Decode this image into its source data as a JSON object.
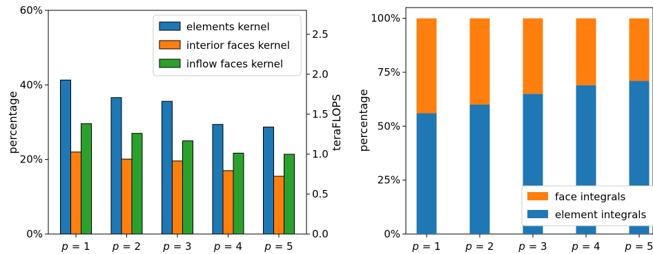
{
  "chart_data": [
    {
      "type": "bar",
      "categories": [
        "p = 1",
        "p = 2",
        "p = 3",
        "p = 4",
        "p = 5"
      ],
      "ylabel": "percentage",
      "ylabel_right": "teraFLOPS",
      "ylim": [
        0,
        60
      ],
      "ylim_right": [
        0,
        2.8
      ],
      "yticks": [
        "0%",
        "20%",
        "40%",
        "60%"
      ],
      "yticks_right": [
        "0.0",
        "0.5",
        "1.0",
        "1.5",
        "2.0",
        "2.5"
      ],
      "legend_position": "top-right",
      "series": [
        {
          "name": "elements kernel",
          "color": "#1f77b4",
          "values": [
            41.3,
            36.6,
            35.6,
            29.4,
            28.7
          ]
        },
        {
          "name": "interior faces kernel",
          "color": "#ff7f0e",
          "values": [
            22.0,
            20.1,
            19.6,
            17.0,
            15.5
          ]
        },
        {
          "name": "inflow faces kernel",
          "color": "#2ca02c",
          "values": [
            29.6,
            27.0,
            25.0,
            21.7,
            21.4
          ]
        }
      ]
    },
    {
      "type": "bar",
      "stacked": true,
      "categories": [
        "p = 1",
        "p = 2",
        "p = 3",
        "p = 4",
        "p = 5"
      ],
      "ylabel": "percentage",
      "ylim": [
        0,
        105
      ],
      "yticks": [
        "0%",
        "25%",
        "50%",
        "75%",
        "100%"
      ],
      "legend_position": "bottom-right",
      "series": [
        {
          "name": "element integrals",
          "color": "#1f77b4",
          "values": [
            56,
            60,
            65,
            69,
            71
          ]
        },
        {
          "name": "face integrals",
          "color": "#ff7f0e",
          "values": [
            44,
            40,
            35,
            31,
            29
          ]
        }
      ]
    }
  ]
}
